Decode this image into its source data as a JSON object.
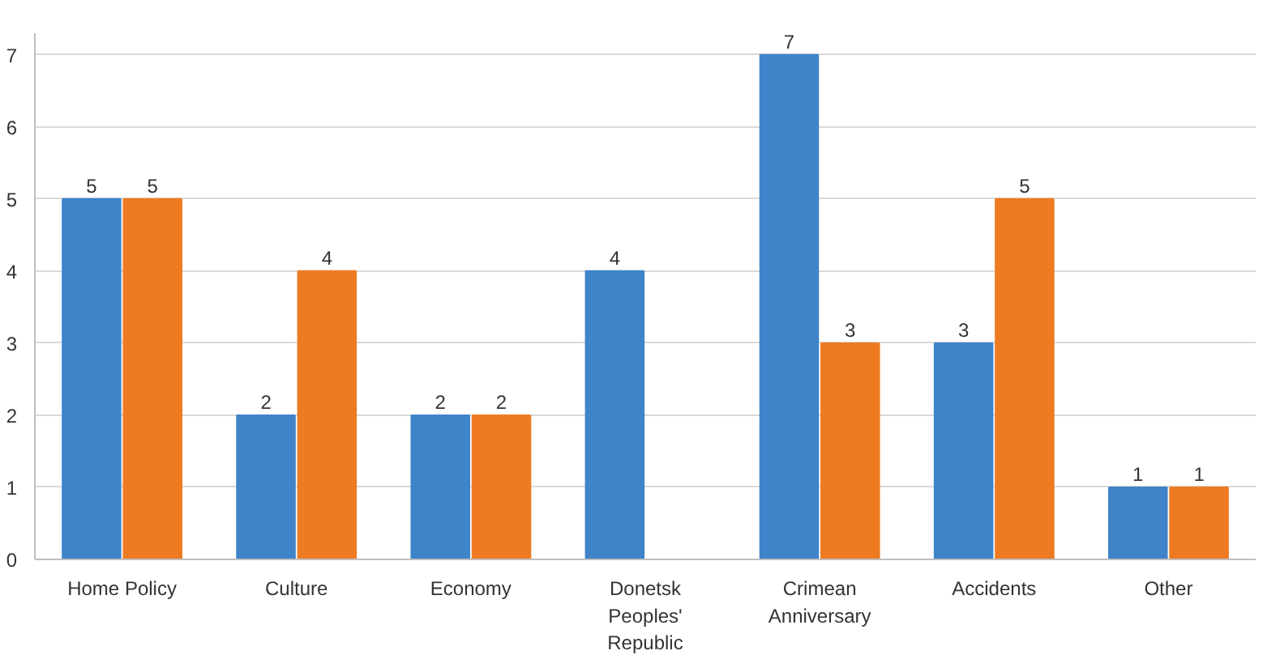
{
  "chart_data": {
    "type": "bar",
    "categories": [
      "Home Policy",
      "Culture",
      "Economy",
      "Donetsk\nPeoples'\nRepublic",
      "Crimean\nAnniversary",
      "Accidents",
      "Other"
    ],
    "series": [
      {
        "color": "#3f83c9",
        "values": [
          5,
          2,
          2,
          4,
          7,
          3,
          1
        ]
      },
      {
        "color": "#ee7b22",
        "values": [
          5,
          4,
          2,
          null,
          3,
          5,
          1
        ]
      }
    ],
    "ylim": [
      0,
      7.3
    ],
    "yticks": [
      0,
      1,
      2,
      3,
      4,
      5,
      6,
      7
    ],
    "grid": "y",
    "data_labels": true
  }
}
